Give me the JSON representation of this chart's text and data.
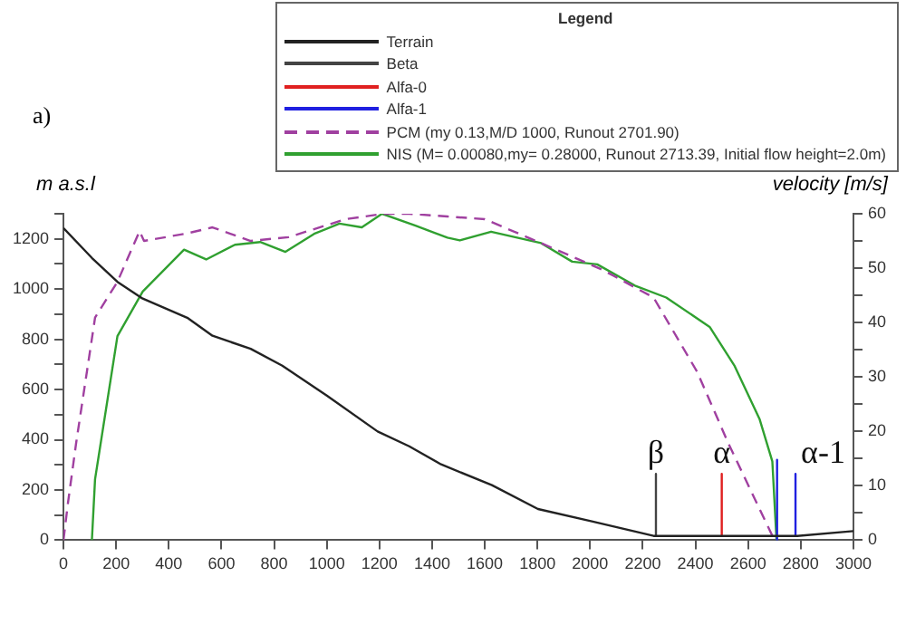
{
  "chart_data": {
    "type": "line",
    "legend_title": "Legend",
    "ylabel": "m a.s.l",
    "y2label": "velocity [m/s]",
    "annotations": [
      "a)",
      {
        "text": "β",
        "x": 2250,
        "y": 264
      },
      {
        "text": "α",
        "x": 2500,
        "y": 264
      },
      {
        "text": "α-1",
        "x": 2780,
        "y": 264
      }
    ],
    "legend": "top right",
    "grid": false,
    "marker": "none",
    "xlim": [
      0,
      3000
    ],
    "xticks": [
      0,
      200,
      400,
      600,
      800,
      1000,
      1200,
      1400,
      1600,
      1800,
      2000,
      2200,
      2400,
      2600,
      2800,
      3000
    ],
    "ylim": [
      0,
      1300
    ],
    "yticks": [
      0,
      {
        "value": 100,
        "label": null
      },
      200,
      {
        "value": 300,
        "label": null
      },
      400,
      {
        "value": 500,
        "label": null
      },
      600,
      {
        "value": 700,
        "label": null
      },
      800,
      {
        "value": 900,
        "label": null
      },
      1000,
      {
        "value": 1100,
        "label": null
      },
      1200,
      {
        "value": 1300,
        "label": null
      }
    ],
    "y2lim": [
      0,
      60
    ],
    "y2ticks": [
      0,
      {
        "value": 5,
        "label": null
      },
      10,
      {
        "value": 15,
        "label": null
      },
      20,
      {
        "value": 25,
        "label": null
      },
      30,
      {
        "value": 35,
        "label": null
      },
      40,
      {
        "value": 45,
        "label": null
      },
      50,
      {
        "value": 55,
        "label": null
      },
      60
    ],
    "series": [
      {
        "name": "Terrain",
        "color": "#222222",
        "line_style": "solid",
        "x": [
          0,
          108,
          205,
          301,
          470,
          566,
          711,
          831,
          1000,
          1193,
          1313,
          1434,
          1627,
          1802,
          2003,
          2241,
          2787,
          3000
        ],
        "values": [
          1243,
          1124,
          1029,
          962,
          886,
          814,
          762,
          695,
          576,
          433,
          374,
          302,
          219,
          124,
          76,
          17,
          17,
          36
        ]
      },
      {
        "name": "Beta",
        "color": "#444444",
        "line_style": "solid",
        "x": [
          2250,
          2250
        ],
        "values": [
          264,
          20
        ]
      },
      {
        "name": "Alfa-0",
        "color": "#e02020",
        "line_style": "solid",
        "x": [
          2500,
          2500
        ],
        "values": [
          264,
          20
        ]
      },
      {
        "name": "Alfa-1",
        "color": "#2020e0",
        "line_style": "solid",
        "x": [
          2710,
          2710,
          2745,
          2780,
          2780
        ],
        "values": [
          320,
          0,
          null,
          264,
          20
        ]
      },
      {
        "name": "PCM (my 0.13,M/D 1000, Runout 2701.90)",
        "color": "#a040a0",
        "line_style": "dashed",
        "axis": "y2",
        "x": [
          0,
          17,
          48,
          120,
          205,
          289,
          306,
          470,
          566,
          711,
          855,
          1072,
          1217,
          1313,
          1458,
          1600,
          1814,
          2051,
          2241,
          2407,
          2525,
          2692,
          2702
        ],
        "values": [
          0,
          6.8,
          17.8,
          40.9,
          47.5,
          56.8,
          55,
          56.4,
          57.5,
          55,
          55.7,
          59,
          60,
          60,
          59.5,
          59,
          54.6,
          49.6,
          44.6,
          30.9,
          17.8,
          0.8,
          0
        ]
      },
      {
        "name": "NIS (M= 0.00080,my= 0.28000, Runout 2713.39, Initial flow height=2.0m)",
        "color": "#30a030",
        "line_style": "solid",
        "axis": "y2",
        "x": [
          108,
          120,
          205,
          301,
          458,
          542,
          651,
          747,
          843,
          952,
          1048,
          1133,
          1210,
          1337,
          1458,
          1505,
          1624,
          1814,
          1932,
          2027,
          2170,
          2289,
          2454,
          2549,
          2644,
          2692,
          2708
        ],
        "values": [
          0,
          11.2,
          37.5,
          45.7,
          53.4,
          51.6,
          54.3,
          54.8,
          53,
          56.3,
          58.2,
          57.5,
          60,
          57.8,
          55.6,
          55.1,
          56.7,
          54.6,
          51.2,
          50.7,
          46.8,
          44.6,
          39.2,
          32,
          22.2,
          14.5,
          0
        ]
      }
    ]
  }
}
